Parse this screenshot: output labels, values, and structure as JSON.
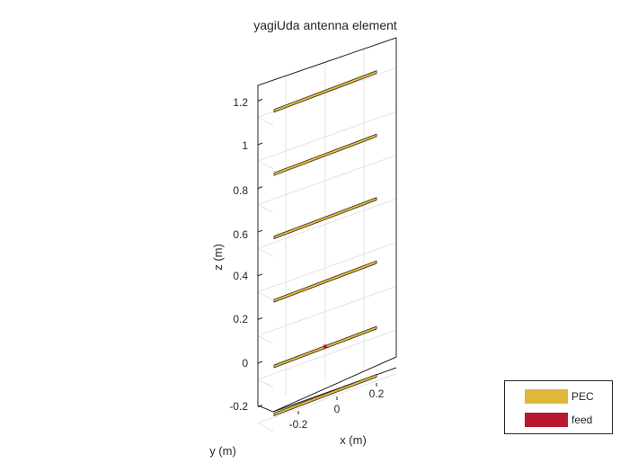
{
  "figure": {
    "title": "yagiUda antenna element",
    "xlabel": "x (m)",
    "ylabel": "y (m)",
    "zlabel": "z (m)",
    "x_ticks": [
      "-0.2",
      "0",
      "0.2"
    ],
    "z_ticks": [
      "-0.2",
      "0",
      "0.2",
      "0.4",
      "0.6",
      "0.8",
      "1",
      "1.2"
    ],
    "grid": true,
    "view": "3-D"
  },
  "elements": [
    {
      "z": -0.22,
      "role": "reflector"
    },
    {
      "z": 0.0,
      "role": "driven"
    },
    {
      "z": 0.3,
      "role": "director"
    },
    {
      "z": 0.59,
      "role": "director"
    },
    {
      "z": 0.88,
      "role": "director"
    },
    {
      "z": 1.17,
      "role": "director"
    }
  ],
  "legend": {
    "items": [
      {
        "label": "PEC",
        "color": "#e0b83a"
      },
      {
        "label": "feed",
        "color": "#b81830"
      }
    ]
  },
  "colors": {
    "pec": "#e0b83a",
    "feed": "#b81830",
    "axis": "#262626",
    "grid": "#dcdcdc"
  }
}
